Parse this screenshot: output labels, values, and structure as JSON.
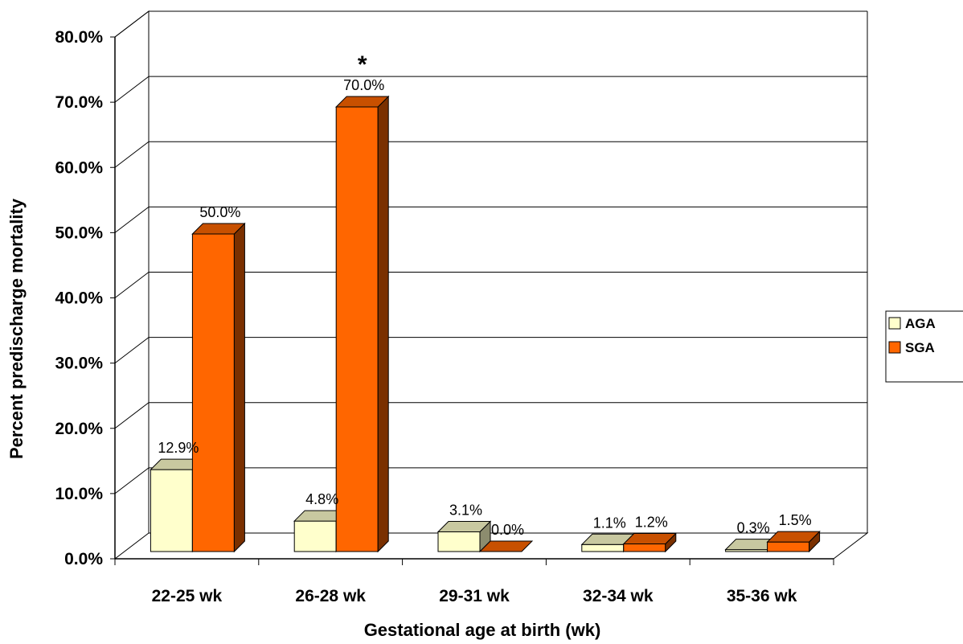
{
  "chart_data": {
    "type": "bar",
    "title": "",
    "xlabel": "Gestational age at birth (wk)",
    "ylabel": "Percent predischarge mortality",
    "categories": [
      "22-25 wk",
      "26-28 wk",
      "29-31 wk",
      "32-34 wk",
      "35-36 wk"
    ],
    "ylim": [
      0,
      80
    ],
    "yticks": [
      "0.0%",
      "10.0%",
      "20.0%",
      "30.0%",
      "40.0%",
      "50.0%",
      "60.0%",
      "70.0%",
      "80.0%"
    ],
    "series": [
      {
        "name": "AGA",
        "values": [
          12.9,
          4.8,
          3.1,
          1.1,
          0.3
        ],
        "labels": [
          "12.9%",
          "4.8%",
          "3.1%",
          "1.1%",
          "0.3%"
        ]
      },
      {
        "name": "SGA",
        "values": [
          50.0,
          70.0,
          0.0,
          1.2,
          1.5
        ],
        "labels": [
          "50.0%",
          "70.0%",
          "0.0%",
          "1.2%",
          "1.5%"
        ]
      }
    ],
    "annotations": [
      {
        "text": "*",
        "category": "26-28 wk",
        "series": "SGA"
      }
    ],
    "grid": true,
    "legend": "right",
    "style": "3d-clustered-column",
    "colors": {
      "AGA": {
        "front": "#ffffcc",
        "top": "#c8c8a0",
        "side": "#8c8c6e"
      },
      "SGA": {
        "front": "#ff6600",
        "top": "#c85000",
        "side": "#7a3000"
      }
    }
  }
}
